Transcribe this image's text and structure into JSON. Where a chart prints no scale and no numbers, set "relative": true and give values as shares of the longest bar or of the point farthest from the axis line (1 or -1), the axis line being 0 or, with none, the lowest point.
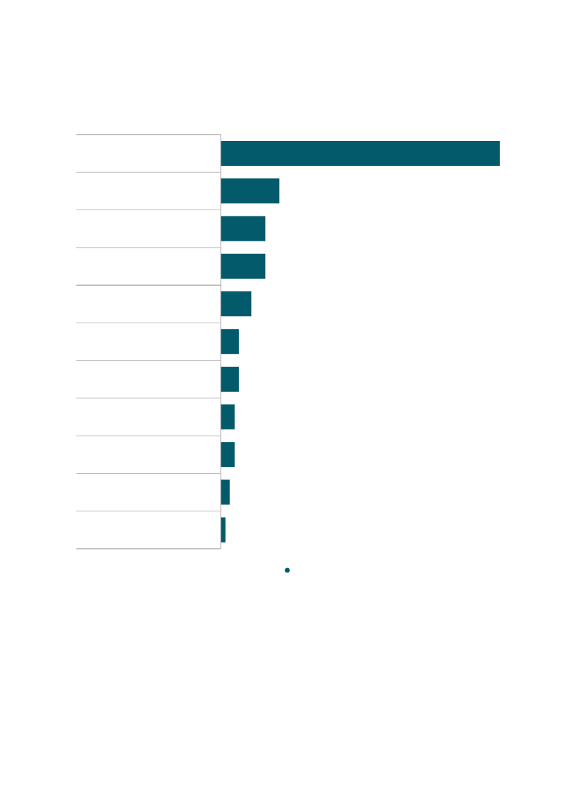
{
  "chart_data": {
    "type": "bar",
    "orientation": "horizontal",
    "relative": true,
    "categories": [
      null,
      null,
      null,
      null,
      null,
      null,
      null,
      null,
      null,
      null,
      null
    ],
    "series": [
      {
        "color": "#035a6b",
        "values": [
          1,
          0.21,
          0.16,
          0.16,
          0.11,
          0.065,
          0.065,
          0.05,
          0.05,
          0.032,
          0.017
        ]
      }
    ],
    "grid": false
  }
}
